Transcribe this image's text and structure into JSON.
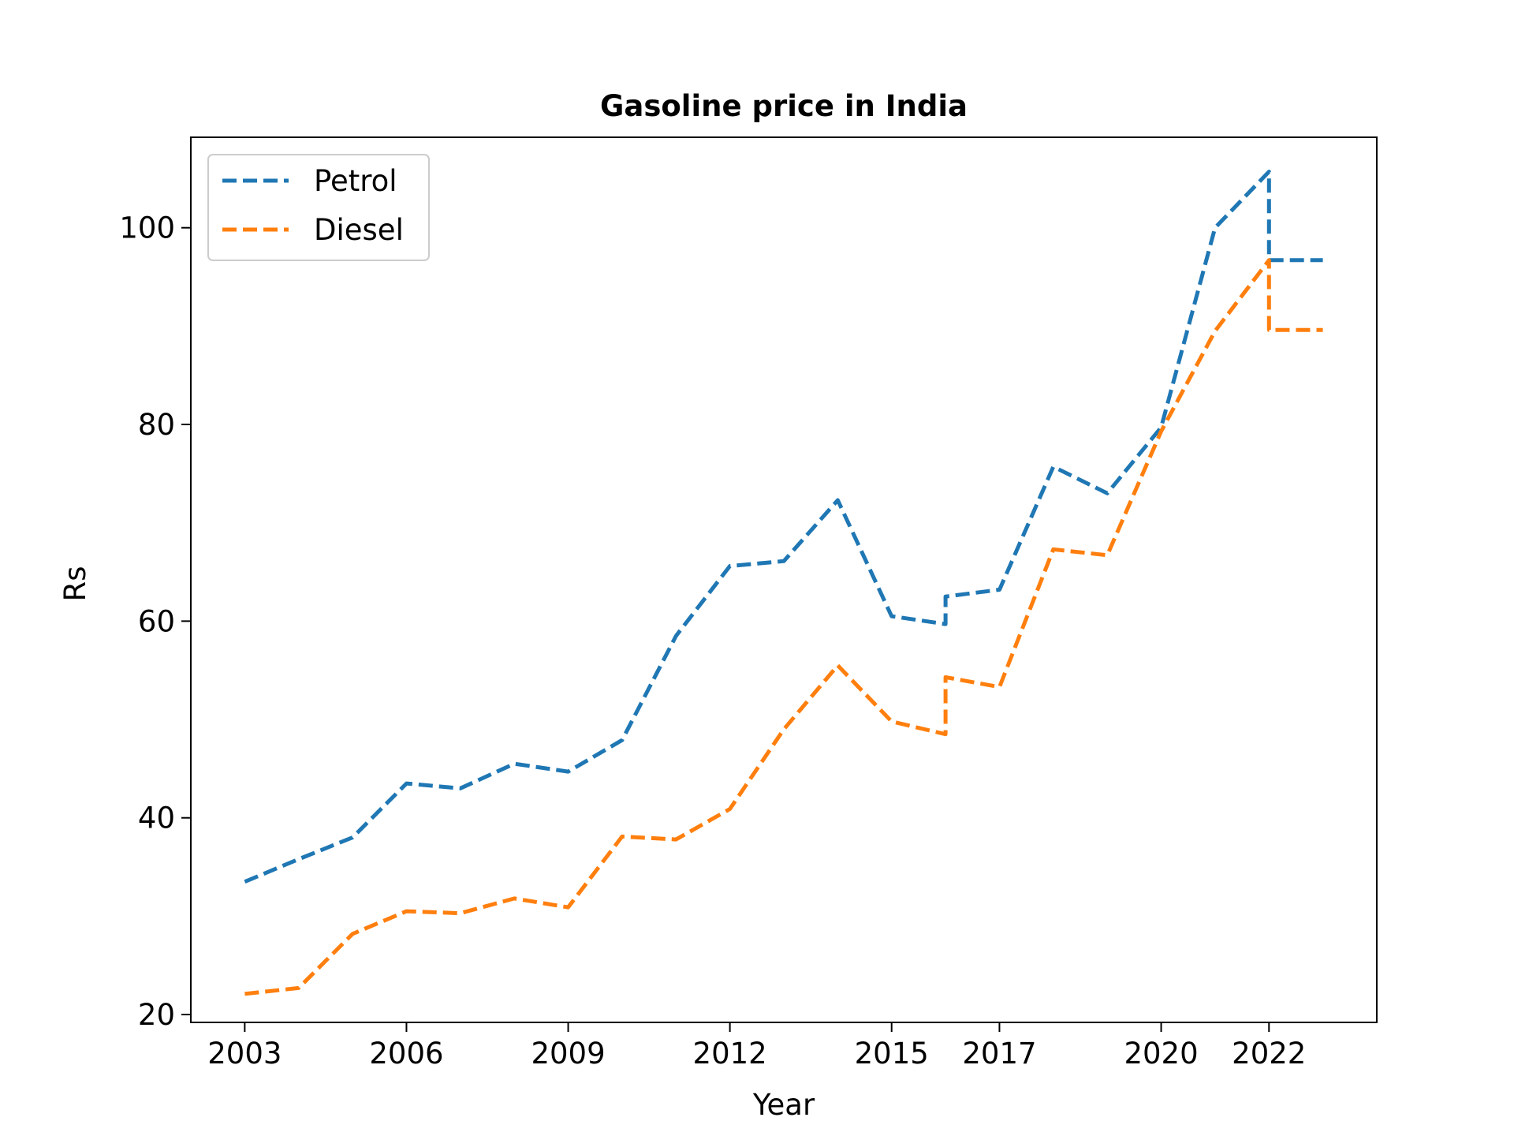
{
  "chart_data": {
    "type": "line",
    "title": "Gasoline price in India",
    "xlabel": "Year",
    "ylabel": "Rs",
    "xlim": [
      2002.0,
      2024.0
    ],
    "ylim": [
      19.2,
      109.2
    ],
    "xticks": [
      2003,
      2006,
      2009,
      2012,
      2015,
      2017,
      2020,
      2022
    ],
    "yticks": [
      20,
      40,
      60,
      80,
      100
    ],
    "grid": false,
    "legend_position": "upper-left",
    "series": [
      {
        "name": "Petrol",
        "color": "#1f77b4",
        "style": "dashed",
        "points": [
          [
            2003,
            33.5
          ],
          [
            2004,
            35.8
          ],
          [
            2005,
            38.0
          ],
          [
            2006,
            43.5
          ],
          [
            2007,
            43.0
          ],
          [
            2008,
            45.5
          ],
          [
            2009,
            44.7
          ],
          [
            2010,
            47.9
          ],
          [
            2011,
            58.5
          ],
          [
            2012,
            65.6
          ],
          [
            2013,
            66.1
          ],
          [
            2014,
            72.3
          ],
          [
            2015,
            60.5
          ],
          [
            2016,
            59.7
          ],
          [
            2016,
            62.5
          ],
          [
            2017,
            63.2
          ],
          [
            2018,
            75.7
          ],
          [
            2019,
            73.0
          ],
          [
            2020,
            79.7
          ],
          [
            2021,
            100.0
          ],
          [
            2022,
            105.7
          ],
          [
            2022,
            96.7
          ],
          [
            2023,
            96.7
          ]
        ]
      },
      {
        "name": "Diesel",
        "color": "#ff7f0e",
        "style": "dashed",
        "points": [
          [
            2003,
            22.1
          ],
          [
            2004,
            22.7
          ],
          [
            2005,
            28.2
          ],
          [
            2006,
            30.5
          ],
          [
            2007,
            30.3
          ],
          [
            2008,
            31.8
          ],
          [
            2009,
            30.9
          ],
          [
            2010,
            38.1
          ],
          [
            2011,
            37.8
          ],
          [
            2012,
            40.9
          ],
          [
            2013,
            49.0
          ],
          [
            2014,
            55.5
          ],
          [
            2015,
            49.8
          ],
          [
            2016,
            48.5
          ],
          [
            2016,
            54.3
          ],
          [
            2017,
            53.3
          ],
          [
            2018,
            67.3
          ],
          [
            2019,
            66.7
          ],
          [
            2020,
            79.3
          ],
          [
            2021,
            89.5
          ],
          [
            2022,
            96.7
          ],
          [
            2022,
            89.6
          ],
          [
            2023,
            89.6
          ]
        ]
      }
    ]
  }
}
